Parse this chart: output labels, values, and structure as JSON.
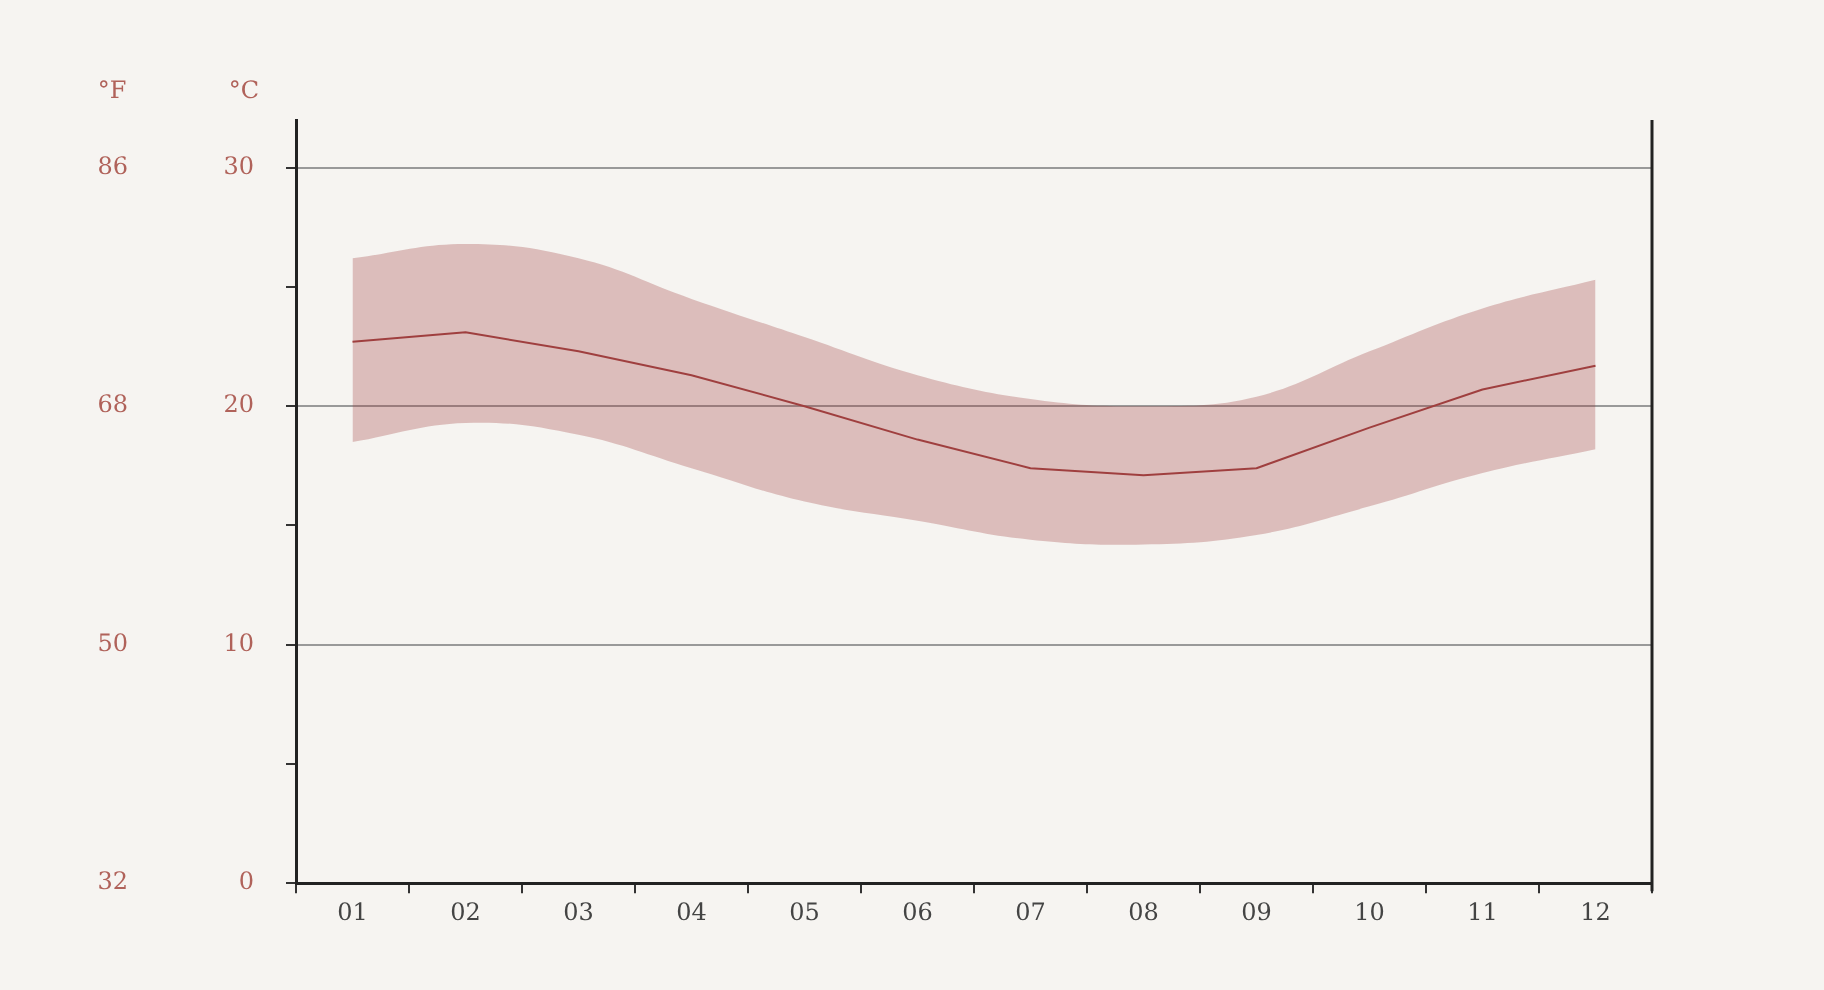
{
  "chart_data": {
    "type": "line",
    "ylabel": "°C",
    "y2label": "°F",
    "categories": [
      "01",
      "02",
      "03",
      "04",
      "05",
      "06",
      "07",
      "08",
      "09",
      "10",
      "11",
      "12"
    ],
    "series": [
      {
        "color": "#a0403f",
        "values": [
          22.7,
          23.1,
          22.3,
          21.3,
          20.0,
          18.6,
          17.4,
          17.1,
          17.4,
          19.1,
          20.7,
          21.7
        ],
        "lower": [
          18.5,
          19.3,
          18.8,
          17.4,
          16.0,
          15.2,
          14.4,
          14.2,
          14.6,
          15.8,
          17.2,
          18.2
        ],
        "upper": [
          26.2,
          26.8,
          26.2,
          24.5,
          22.9,
          21.3,
          20.3,
          20.0,
          20.4,
          22.3,
          24.1,
          25.3
        ]
      }
    ],
    "ylim": [
      0,
      32
    ],
    "yticks": [
      0,
      {
        "value": 5,
        "label": null
      },
      10,
      {
        "value": 15,
        "label": null
      },
      20,
      {
        "value": 25,
        "label": null
      },
      30
    ],
    "y2lim": [
      32,
      89.6
    ],
    "y2ticks": [
      32,
      50,
      68,
      86
    ],
    "grid": "y",
    "legend": false,
    "marker": "none",
    "line_style": "solid"
  }
}
